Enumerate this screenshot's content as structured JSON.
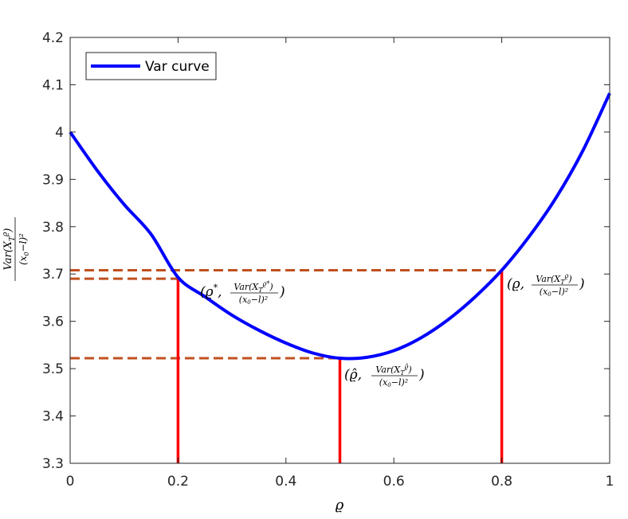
{
  "chart_data": {
    "type": "line",
    "xlabel": "ϱ",
    "ylabel": "Var(X_T^ϱ)/(x₀−l)²",
    "xlim": [
      0,
      1
    ],
    "ylim": [
      3.3,
      4.2
    ],
    "xticks": [
      0,
      0.2,
      0.4,
      0.6,
      0.8,
      1
    ],
    "xtick_labels": [
      "0",
      "0.2",
      "0.4",
      "0.6",
      "0.8",
      "1"
    ],
    "yticks": [
      3.3,
      3.4,
      3.5,
      3.6,
      3.7,
      3.8,
      3.9,
      4.0,
      4.1,
      4.2
    ],
    "ytick_labels": [
      "3.3",
      "3.4",
      "3.5",
      "3.6",
      "3.7",
      "3.8",
      "3.9",
      "4",
      "4.1",
      "4.2"
    ],
    "grid": false,
    "legend_position": "top-left",
    "colors": {
      "curve": "#0000FF",
      "vertical_lines": "#FF0000",
      "dashed_lines": "#C0501F",
      "axes": "#262626"
    },
    "series": [
      {
        "name": "Var curve",
        "x": [
          0,
          0.05,
          0.1,
          0.15,
          0.2,
          0.25,
          0.3,
          0.35,
          0.4,
          0.45,
          0.5,
          0.55,
          0.6,
          0.65,
          0.7,
          0.75,
          0.8,
          0.85,
          0.9,
          0.95,
          1.0
        ],
        "values": [
          4.0,
          3.919,
          3.847,
          3.784,
          3.693,
          3.652,
          3.613,
          3.581,
          3.554,
          3.533,
          3.522,
          3.524,
          3.538,
          3.565,
          3.603,
          3.651,
          3.708,
          3.778,
          3.86,
          3.96,
          4.082
        ]
      }
    ],
    "vertical_lines": [
      {
        "x": 0.2,
        "y": 3.69
      },
      {
        "x": 0.5,
        "y": 3.522
      },
      {
        "x": 0.8,
        "y": 3.708
      }
    ],
    "dashed_lines": [
      {
        "y": 3.708,
        "x_end": 0.8
      },
      {
        "y": 3.69,
        "x_end": 0.2
      },
      {
        "y": 3.522,
        "x_end": 0.5
      }
    ],
    "annotations": [
      {
        "text": "(ϱ*, Var(X_T^ϱ*)/(x₀−l)²)",
        "x": 0.2,
        "y": 3.69
      },
      {
        "text": "(ϱ̂, Var(X_T^ϱ̂)/(x₀−l)²)",
        "x": 0.5,
        "y": 3.522
      },
      {
        "text": "(ϱ, Var(X_T^ϱ)/(x₀−l)²)",
        "x": 0.8,
        "y": 3.708
      }
    ]
  }
}
